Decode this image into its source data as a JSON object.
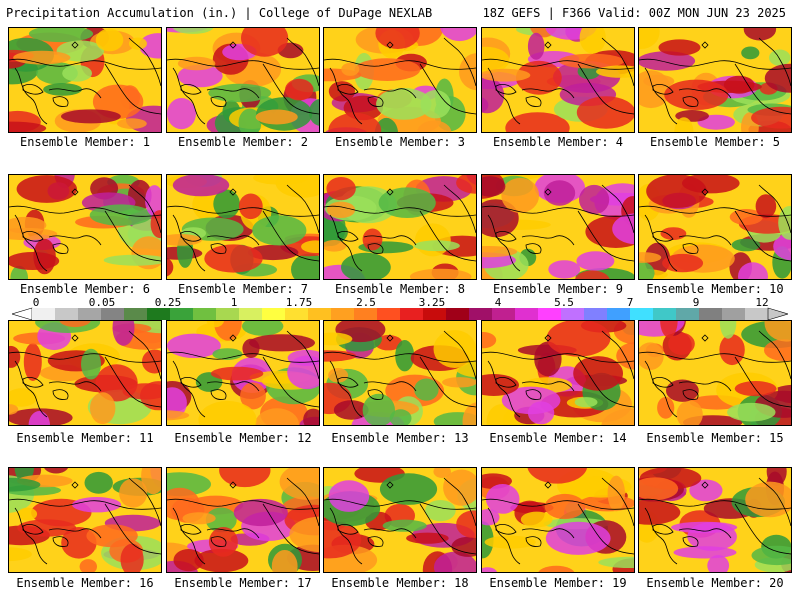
{
  "header": {
    "left": "Precipitation Accumulation (in.) | College of DuPage NEXLAB",
    "right": "18Z GEFS | F366 Valid: 00Z MON JUN 23 2025"
  },
  "colorbar": {
    "labels": [
      "0",
      "0.05",
      "0.25",
      "1",
      "1.75",
      "2.5",
      "3.25",
      "4",
      "5.5",
      "7",
      "9",
      "12"
    ],
    "colors": [
      "#f0f0f0",
      "#c8c8c8",
      "#a6a6a6",
      "#848484",
      "#5a8a4a",
      "#1e7a1e",
      "#3aa33a",
      "#70c040",
      "#a8d850",
      "#d8f060",
      "#ffff40",
      "#ffe030",
      "#ffc020",
      "#ffa020",
      "#ff8020",
      "#ff5020",
      "#e82020",
      "#c80c0c",
      "#a00018",
      "#a01068",
      "#c02090",
      "#e030d0",
      "#ff40ff",
      "#c070ff",
      "#8080ff",
      "#40a0ff",
      "#40e0ff",
      "#40c8c8",
      "#60a8a8",
      "#808080",
      "#a0a0a0",
      "#c8c8c8"
    ]
  },
  "members": [
    {
      "label": "Ensemble Member: 1"
    },
    {
      "label": "Ensemble Member: 2"
    },
    {
      "label": "Ensemble Member: 3"
    },
    {
      "label": "Ensemble Member: 4"
    },
    {
      "label": "Ensemble Member: 5"
    },
    {
      "label": "Ensemble Member: 6"
    },
    {
      "label": "Ensemble Member: 7"
    },
    {
      "label": "Ensemble Member: 8"
    },
    {
      "label": "Ensemble Member: 9"
    },
    {
      "label": "Ensemble Member: 10"
    },
    {
      "label": "Ensemble Member: 11"
    },
    {
      "label": "Ensemble Member: 12"
    },
    {
      "label": "Ensemble Member: 13"
    },
    {
      "label": "Ensemble Member: 14"
    },
    {
      "label": "Ensemble Member: 15"
    },
    {
      "label": "Ensemble Member: 16"
    },
    {
      "label": "Ensemble Member: 17"
    },
    {
      "label": "Ensemble Member: 18"
    },
    {
      "label": "Ensemble Member: 19"
    },
    {
      "label": "Ensemble Member: 20"
    }
  ]
}
